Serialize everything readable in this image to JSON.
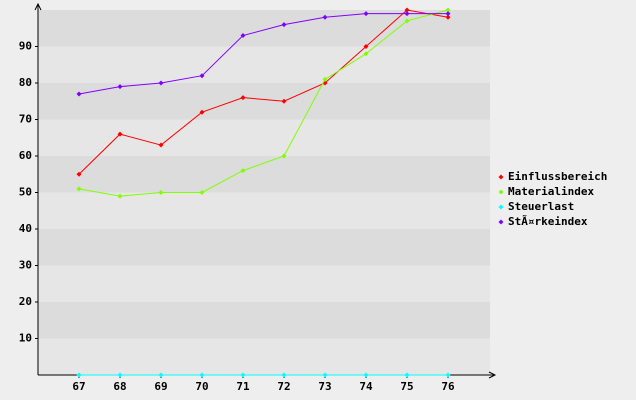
{
  "chart_data": {
    "type": "line",
    "categories": [
      "67",
      "68",
      "69",
      "70",
      "71",
      "72",
      "73",
      "74",
      "75",
      "76"
    ],
    "series": [
      {
        "name": "Einflussbereich",
        "color": "#ff0000",
        "values": [
          55,
          66,
          63,
          72,
          76,
          75,
          80,
          90,
          100,
          98
        ]
      },
      {
        "name": "Materialindex",
        "color": "#80ff00",
        "values": [
          51,
          49,
          50,
          50,
          56,
          60,
          81,
          88,
          97,
          100
        ]
      },
      {
        "name": "Steuerlast",
        "color": "#00ffff",
        "values": [
          0,
          0,
          0,
          0,
          0,
          0,
          0,
          0,
          0,
          0
        ]
      },
      {
        "name": "StÃ¤rkeindex",
        "color": "#8000ff",
        "values": [
          77,
          79,
          80,
          82,
          93,
          96,
          98,
          99,
          99,
          99
        ]
      }
    ],
    "ylim": [
      0,
      100
    ],
    "yticks": [
      10,
      20,
      30,
      40,
      50,
      60,
      70,
      80,
      90
    ],
    "grid": true,
    "legend": "right"
  }
}
